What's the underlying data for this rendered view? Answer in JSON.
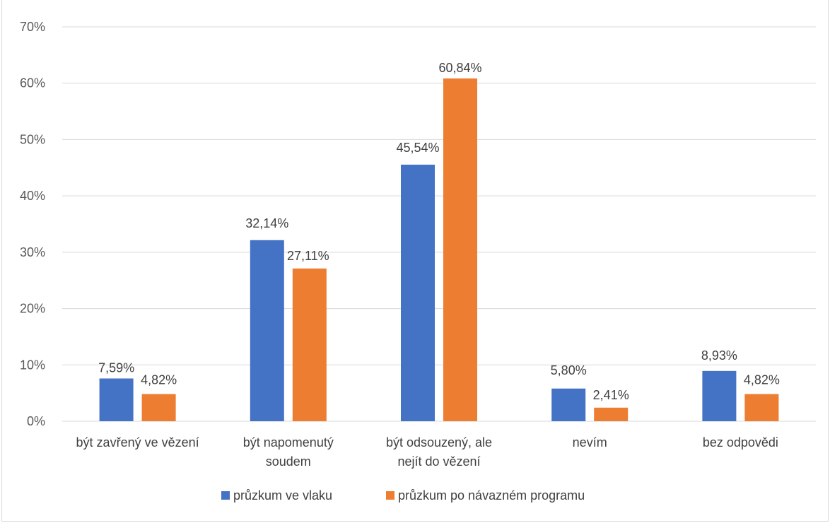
{
  "chart_data": {
    "type": "bar",
    "title": "",
    "categories": [
      [
        "být zavřený ve vězení"
      ],
      [
        "být napomenutý",
        "soudem"
      ],
      [
        "být odsouzený, ale",
        "nejít do vězení"
      ],
      [
        "nevím"
      ],
      [
        "bez odpovědi"
      ]
    ],
    "series": [
      {
        "name": "průzkum ve vlaku",
        "color": "#4472c4",
        "values": [
          7.59,
          32.14,
          45.54,
          5.8,
          8.93
        ],
        "labels": [
          "7,59%",
          "32,14%",
          "45,54%",
          "5,80%",
          "8,93%"
        ]
      },
      {
        "name": "průzkum po návazném programu",
        "color": "#ed7d31",
        "values": [
          4.82,
          27.11,
          60.84,
          2.41,
          4.82
        ],
        "labels": [
          "4,82%",
          "27,11%",
          "60,84%",
          "2,41%",
          "4,82%"
        ]
      }
    ],
    "ylim": [
      0,
      70
    ],
    "yticks": [
      {
        "value": 0,
        "label": "0%"
      },
      {
        "value": 10,
        "label": "10%"
      },
      {
        "value": 20,
        "label": "20%"
      },
      {
        "value": 30,
        "label": "30%"
      },
      {
        "value": 40,
        "label": "40%"
      },
      {
        "value": 50,
        "label": "50%"
      },
      {
        "value": 60,
        "label": "60%"
      },
      {
        "value": 70,
        "label": "70%"
      }
    ],
    "xlabel": "",
    "ylabel": "",
    "grid": true,
    "legend": "bottom"
  }
}
